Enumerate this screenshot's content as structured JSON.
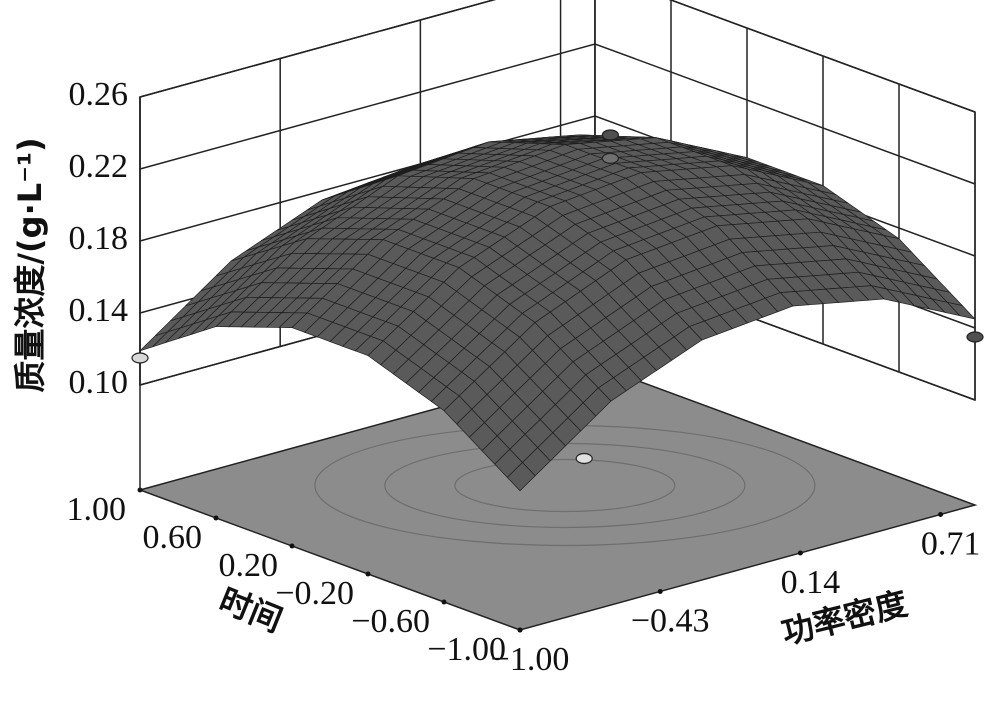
{
  "chart_data": {
    "type": "surface3d",
    "z_label": "质量浓度/(g·L⁻¹)",
    "x_label": "时间",
    "y_label": "功率密度",
    "x": [
      -1,
      -0.6,
      -0.2,
      0.2,
      0.6,
      1
    ],
    "y": [
      -1,
      -0.63,
      -0.26,
      0.11,
      0.48,
      0.85
    ],
    "z": [
      [
        0.119,
        0.155,
        0.175,
        0.18,
        0.17,
        0.145
      ],
      [
        0.148,
        0.183,
        0.204,
        0.209,
        0.199,
        0.174
      ],
      [
        0.163,
        0.198,
        0.218,
        0.223,
        0.213,
        0.188
      ],
      [
        0.163,
        0.198,
        0.218,
        0.223,
        0.213,
        0.188
      ],
      [
        0.148,
        0.183,
        0.204,
        0.209,
        0.199,
        0.174
      ],
      [
        0.119,
        0.155,
        0.175,
        0.18,
        0.17,
        0.145
      ]
    ],
    "xlim": [
      -1,
      1
    ],
    "ylim": [
      -1,
      0.85
    ],
    "zlim": [
      0.1,
      0.26
    ],
    "xticks": [
      {
        "value": 1,
        "label": "1.00"
      },
      {
        "value": 0.6,
        "label": "0.60"
      },
      {
        "value": 0.2,
        "label": "0.20"
      },
      {
        "value": -0.2,
        "label": "−0.20"
      },
      {
        "value": -0.6,
        "label": "−0.60"
      },
      {
        "value": -1,
        "label": "−1.00"
      }
    ],
    "yticks": [
      {
        "value": -1,
        "label": "−1.00"
      },
      {
        "value": -0.43,
        "label": "−0.43"
      },
      0.14,
      0.71
    ],
    "zticks": [
      {
        "value": 0.1,
        "label": "0.10"
      },
      0.14,
      0.18,
      0.22,
      0.26
    ],
    "surface_color": "#5a5a5a",
    "floor_color": "#8c8c8c",
    "points": [
      {
        "x": 1,
        "y": -1,
        "z": 0.115,
        "color": "#d8d8d8"
      },
      {
        "x": 0,
        "y": 0.14,
        "z": 0.235,
        "color": "#505050"
      },
      {
        "x": 0,
        "y": 0.14,
        "z": 0.222,
        "color": "#707070"
      },
      {
        "x": -1,
        "y": 0.85,
        "z": 0.135,
        "color": "#505050"
      },
      {
        "x": -0.6,
        "y": -0.43,
        "z": 0.1,
        "color": "#e0e0e0"
      }
    ]
  }
}
